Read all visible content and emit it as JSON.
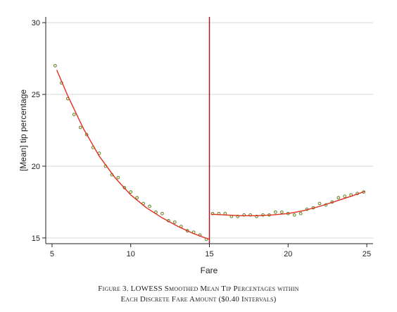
{
  "chart_data": {
    "type": "scatter",
    "xlabel": "Fare",
    "ylabel": "[Mean] tip percentage",
    "xlim": [
      4.6,
      25.4
    ],
    "ylim": [
      14.6,
      30.4
    ],
    "xticks": [
      "5",
      "10",
      "15",
      "20",
      "25"
    ],
    "yticks": [
      "15",
      "20",
      "25",
      "30"
    ],
    "grid": "horizontal",
    "vline_x": 15,
    "colors": {
      "points": "#4e7a2a",
      "curve": "#e0301e",
      "vline": "#a01e2a",
      "grid": "#d9d9d9",
      "axis": "#222222"
    },
    "series": [
      {
        "marker": "circle",
        "x": [
          5.2,
          5.6,
          6.0,
          6.4,
          6.8,
          7.2,
          7.6,
          8.0,
          8.4,
          8.8,
          9.2,
          9.6,
          10.0,
          10.4,
          10.8,
          11.2,
          11.6,
          12.0,
          12.4,
          12.8,
          13.2,
          13.6,
          14.0,
          14.4,
          14.8,
          15.2,
          15.6,
          16.0,
          16.4,
          16.8,
          17.2,
          17.6,
          18.0,
          18.4,
          18.8,
          19.2,
          19.6,
          20.0,
          20.4,
          20.8,
          21.2,
          21.6,
          22.0,
          22.4,
          22.8,
          23.2,
          23.6,
          24.0,
          24.4,
          24.8
        ],
        "y": [
          27.0,
          25.8,
          24.7,
          23.6,
          22.7,
          22.2,
          21.3,
          20.9,
          20.0,
          19.4,
          19.2,
          18.5,
          18.2,
          17.8,
          17.4,
          17.2,
          16.8,
          16.7,
          16.2,
          16.1,
          15.8,
          15.5,
          15.4,
          15.2,
          14.9,
          16.7,
          16.7,
          16.7,
          16.5,
          16.5,
          16.6,
          16.6,
          16.5,
          16.6,
          16.6,
          16.8,
          16.8,
          16.7,
          16.6,
          16.7,
          17.0,
          17.1,
          17.4,
          17.3,
          17.5,
          17.8,
          17.9,
          18.0,
          18.1,
          18.2
        ]
      },
      {
        "marker": "line",
        "segments": [
          {
            "x": [
              5.3,
              6.0,
              7.0,
              8.0,
              9.0,
              10.0,
              11.0,
              12.0,
              13.0,
              14.0,
              15.0
            ],
            "y": [
              26.7,
              24.9,
              22.6,
              20.7,
              19.2,
              18.0,
              17.1,
              16.4,
              15.8,
              15.3,
              14.9
            ]
          },
          {
            "x": [
              15.1,
              16.0,
              17.0,
              18.0,
              19.0,
              20.0,
              21.0,
              22.0,
              23.0,
              24.0,
              24.9
            ],
            "y": [
              16.65,
              16.6,
              16.55,
              16.55,
              16.6,
              16.7,
              16.9,
              17.2,
              17.55,
              17.9,
              18.25
            ]
          }
        ]
      }
    ]
  },
  "caption": {
    "line1": "Figure 3. LOWESS Smoothed Mean Tip Percentages within",
    "line2": "Each Discrete Fare Amount ($0.40 Intervals)"
  }
}
